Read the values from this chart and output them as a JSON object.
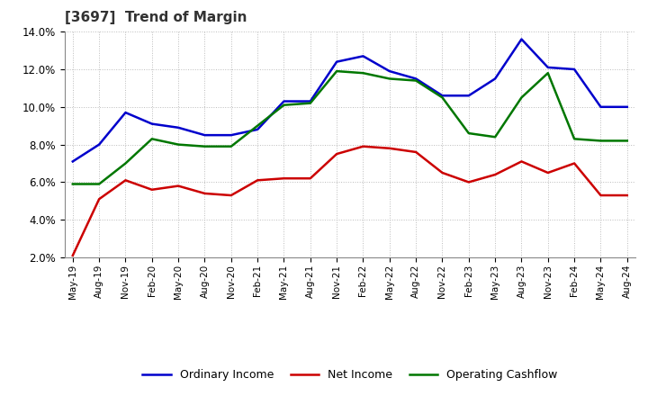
{
  "title": "[3697]  Trend of Margin",
  "x_labels": [
    "May-19",
    "Aug-19",
    "Nov-19",
    "Feb-20",
    "May-20",
    "Aug-20",
    "Nov-20",
    "Feb-21",
    "May-21",
    "Aug-21",
    "Nov-21",
    "Feb-22",
    "May-22",
    "Aug-22",
    "Nov-22",
    "Feb-23",
    "May-23",
    "Aug-23",
    "Nov-23",
    "Feb-24",
    "May-24",
    "Aug-24"
  ],
  "ordinary_income": [
    7.1,
    8.0,
    9.7,
    9.1,
    8.9,
    8.5,
    8.5,
    8.8,
    10.3,
    10.3,
    12.4,
    12.7,
    11.9,
    11.5,
    10.6,
    10.6,
    11.5,
    13.6,
    12.1,
    12.0,
    10.0,
    10.0
  ],
  "net_income": [
    2.1,
    5.1,
    6.1,
    5.6,
    5.8,
    5.4,
    5.3,
    6.1,
    6.2,
    6.2,
    7.5,
    7.9,
    7.8,
    7.6,
    6.5,
    6.0,
    6.4,
    7.1,
    6.5,
    7.0,
    5.3,
    5.3
  ],
  "operating_cashflow": [
    5.9,
    5.9,
    7.0,
    8.3,
    8.0,
    7.9,
    7.9,
    9.0,
    10.1,
    10.2,
    11.9,
    11.8,
    11.5,
    11.4,
    10.5,
    8.6,
    8.4,
    10.5,
    11.8,
    8.3,
    8.2,
    8.2
  ],
  "colors": {
    "ordinary_income": "#0000cc",
    "net_income": "#cc0000",
    "operating_cashflow": "#007700"
  },
  "ylim": [
    2.0,
    14.0
  ],
  "yticks": [
    2.0,
    4.0,
    6.0,
    8.0,
    10.0,
    12.0,
    14.0
  ],
  "background_color": "#ffffff",
  "plot_bg_color": "#ffffff",
  "grid_color": "#aaaaaa",
  "title_fontsize": 11,
  "title_color": "#333333",
  "legend_labels": [
    "Ordinary Income",
    "Net Income",
    "Operating Cashflow"
  ]
}
